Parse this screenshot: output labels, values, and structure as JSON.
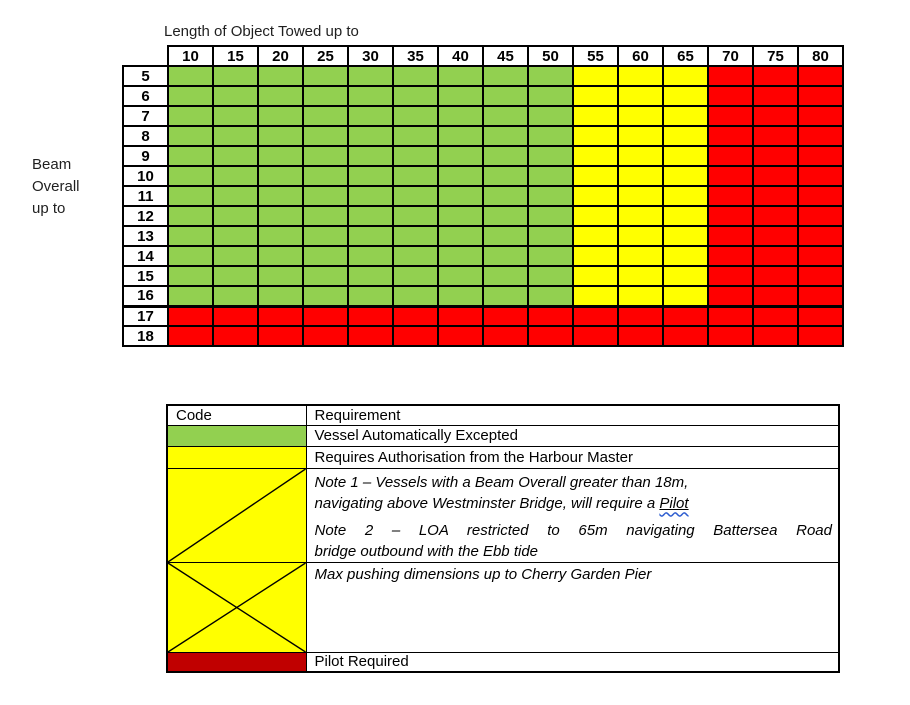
{
  "colors": {
    "green": "#92D050",
    "yellow": "#FFFF00",
    "red": "#FF0000",
    "dark_red": "#C00000",
    "border": "#000000",
    "grammar_wavy_underline": "#2F5ED0"
  },
  "matrix": {
    "title": "Length of Object Towed up to",
    "beam_label_lines": [
      "Beam",
      "Overall",
      "up to"
    ],
    "columns": [
      "10",
      "15",
      "20",
      "25",
      "30",
      "35",
      "40",
      "45",
      "50",
      "55",
      "60",
      "65",
      "70",
      "75",
      "80"
    ],
    "cell_code_colors": {
      "g": "green",
      "y": "yellow",
      "r": "red"
    },
    "rows": [
      {
        "label": "5",
        "cells": [
          "g",
          "g",
          "g",
          "g",
          "g",
          "g",
          "g",
          "g",
          "g",
          "y",
          "y",
          "y",
          "r",
          "r",
          "r"
        ],
        "thick_bottom_border": false
      },
      {
        "label": "6",
        "cells": [
          "g",
          "g",
          "g",
          "g",
          "g",
          "g",
          "g",
          "g",
          "g",
          "y",
          "y",
          "y",
          "r",
          "r",
          "r"
        ],
        "thick_bottom_border": false
      },
      {
        "label": "7",
        "cells": [
          "g",
          "g",
          "g",
          "g",
          "g",
          "g",
          "g",
          "g",
          "g",
          "y",
          "y",
          "y",
          "r",
          "r",
          "r"
        ],
        "thick_bottom_border": false
      },
      {
        "label": "8",
        "cells": [
          "g",
          "g",
          "g",
          "g",
          "g",
          "g",
          "g",
          "g",
          "g",
          "y",
          "y",
          "y",
          "r",
          "r",
          "r"
        ],
        "thick_bottom_border": false
      },
      {
        "label": "9",
        "cells": [
          "g",
          "g",
          "g",
          "g",
          "g",
          "g",
          "g",
          "g",
          "g",
          "y",
          "y",
          "y",
          "r",
          "r",
          "r"
        ],
        "thick_bottom_border": false
      },
      {
        "label": "10",
        "cells": [
          "g",
          "g",
          "g",
          "g",
          "g",
          "g",
          "g",
          "g",
          "g",
          "y",
          "y",
          "y",
          "r",
          "r",
          "r"
        ],
        "thick_bottom_border": false
      },
      {
        "label": "11",
        "cells": [
          "g",
          "g",
          "g",
          "g",
          "g",
          "g",
          "g",
          "g",
          "g",
          "y",
          "y",
          "y",
          "r",
          "r",
          "r"
        ],
        "thick_bottom_border": false
      },
      {
        "label": "12",
        "cells": [
          "g",
          "g",
          "g",
          "g",
          "g",
          "g",
          "g",
          "g",
          "g",
          "y",
          "y",
          "y",
          "r",
          "r",
          "r"
        ],
        "thick_bottom_border": false
      },
      {
        "label": "13",
        "cells": [
          "g",
          "g",
          "g",
          "g",
          "g",
          "g",
          "g",
          "g",
          "g",
          "y",
          "y",
          "y",
          "r",
          "r",
          "r"
        ],
        "thick_bottom_border": false
      },
      {
        "label": "14",
        "cells": [
          "g",
          "g",
          "g",
          "g",
          "g",
          "g",
          "g",
          "g",
          "g",
          "y",
          "y",
          "y",
          "r",
          "r",
          "r"
        ],
        "thick_bottom_border": false
      },
      {
        "label": "15",
        "cells": [
          "g",
          "g",
          "g",
          "g",
          "g",
          "g",
          "g",
          "g",
          "g",
          "y",
          "y",
          "y",
          "r",
          "r",
          "r"
        ],
        "thick_bottom_border": false
      },
      {
        "label": "16",
        "cells": [
          "g",
          "g",
          "g",
          "g",
          "g",
          "g",
          "g",
          "g",
          "g",
          "y",
          "y",
          "y",
          "r",
          "r",
          "r"
        ],
        "thick_bottom_border": true
      },
      {
        "label": "17",
        "cells": [
          "r",
          "r",
          "r",
          "r",
          "r",
          "r",
          "r",
          "r",
          "r",
          "r",
          "r",
          "r",
          "r",
          "r",
          "r"
        ],
        "thick_bottom_border": false
      },
      {
        "label": "18",
        "cells": [
          "r",
          "r",
          "r",
          "r",
          "r",
          "r",
          "r",
          "r",
          "r",
          "r",
          "r",
          "r",
          "r",
          "r",
          "r"
        ],
        "thick_bottom_border": false
      }
    ]
  },
  "legend": {
    "header": {
      "code": "Code",
      "requirement": "Requirement"
    },
    "rows": [
      {
        "swatch": "green",
        "pattern": "none",
        "requirement": "Vessel Automatically Excepted"
      },
      {
        "swatch": "yellow",
        "pattern": "none",
        "requirement": "Requires Authorisation from the Harbour Master"
      },
      {
        "swatch": "yellow",
        "pattern": "diagonal",
        "note1_line1": "Note 1 – Vessels with a Beam Overall greater than 18m,",
        "note1_line2_prefix": "navigating above Westminster Bridge, will require a ",
        "note1_underlined_word": "Pilot",
        "note2_line1": "Note 2 – LOA restricted to 65m navigating Battersea Road",
        "note2_line2": "bridge outbound with the Ebb tide"
      },
      {
        "swatch": "yellow",
        "pattern": "cross",
        "requirement": "Max pushing dimensions  up to Cherry Garden Pier"
      },
      {
        "swatch": "dark_red",
        "pattern": "none",
        "requirement": "Pilot Required"
      }
    ]
  }
}
